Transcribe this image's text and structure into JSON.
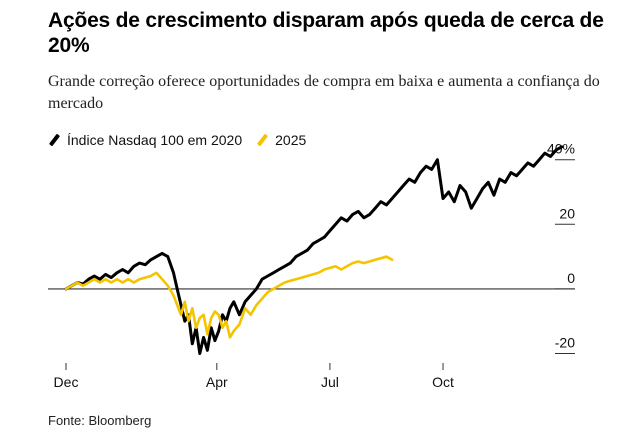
{
  "title": "Ações de crescimento disparam após queda de cerca de 20%",
  "subtitle": "Grande correção oferece oportunidades de compra em baixa e aumenta a confiança do mercado",
  "source": "Fonte: Bloomberg",
  "colors": {
    "series_2020": "#000000",
    "series_2025": "#F5C400",
    "zero_line": "#333333"
  },
  "chart_data": {
    "type": "line",
    "xlim": [
      0,
      13.5
    ],
    "ylim": [
      -22,
      43
    ],
    "x_ticks": [
      {
        "label": "Dec",
        "x": 0
      },
      {
        "label": "Apr",
        "x": 4
      },
      {
        "label": "Jul",
        "x": 7
      },
      {
        "label": "Oct",
        "x": 10
      }
    ],
    "y_ticks": [
      {
        "label": "40%",
        "value": 40
      },
      {
        "label": "20",
        "value": 20
      },
      {
        "label": "0",
        "value": 0
      },
      {
        "label": "-20",
        "value": -20
      }
    ],
    "legend": {
      "position": "top-left"
    },
    "grid": false,
    "series": [
      {
        "name": "Índice Nasdaq 100 em 2020",
        "color": "#000000",
        "x": [
          0,
          0.15,
          0.3,
          0.45,
          0.6,
          0.75,
          0.9,
          1.05,
          1.2,
          1.35,
          1.5,
          1.65,
          1.8,
          1.95,
          2.1,
          2.25,
          2.4,
          2.55,
          2.7,
          2.85,
          2.95,
          3.05,
          3.15,
          3.25,
          3.35,
          3.45,
          3.55,
          3.65,
          3.75,
          3.85,
          3.95,
          4.05,
          4.15,
          4.25,
          4.35,
          4.45,
          4.6,
          4.75,
          4.9,
          5.05,
          5.2,
          5.35,
          5.5,
          5.65,
          5.8,
          5.95,
          6.1,
          6.25,
          6.4,
          6.55,
          6.7,
          6.85,
          7.0,
          7.15,
          7.3,
          7.45,
          7.6,
          7.75,
          7.9,
          8.05,
          8.2,
          8.35,
          8.5,
          8.65,
          8.8,
          8.95,
          9.1,
          9.25,
          9.4,
          9.55,
          9.7,
          9.85,
          10.0,
          10.15,
          10.3,
          10.45,
          10.6,
          10.75,
          10.9,
          11.05,
          11.2,
          11.35,
          11.5,
          11.65,
          11.8,
          11.95,
          12.1,
          12.25,
          12.4,
          12.55,
          12.7,
          12.85,
          13.0,
          13.15
        ],
        "values": [
          0,
          1,
          2,
          1.5,
          3,
          4,
          3,
          4.5,
          3.5,
          5,
          6,
          5,
          7,
          8,
          7.5,
          9,
          10,
          11,
          10,
          5,
          0,
          -5,
          -10,
          -8,
          -17,
          -12,
          -20,
          -15,
          -19,
          -12,
          -16,
          -13,
          -8,
          -10,
          -6,
          -4,
          -8,
          -4,
          -2,
          0,
          3,
          4,
          5,
          6,
          7,
          8,
          10,
          11,
          12,
          14,
          15,
          16,
          18,
          20,
          22,
          21,
          23,
          24,
          22,
          23,
          25,
          27,
          26,
          28,
          30,
          32,
          34,
          33,
          36,
          38,
          37,
          40,
          28,
          30,
          27,
          32,
          30,
          25,
          28,
          31,
          33,
          29,
          34,
          33,
          36,
          35,
          37,
          39,
          38,
          40,
          42,
          41,
          43,
          44
        ]
      },
      {
        "name": "2025",
        "color": "#F5C400",
        "x": [
          0,
          0.15,
          0.3,
          0.45,
          0.6,
          0.75,
          0.9,
          1.05,
          1.2,
          1.35,
          1.5,
          1.65,
          1.8,
          1.95,
          2.1,
          2.25,
          2.4,
          2.55,
          2.7,
          2.85,
          2.95,
          3.05,
          3.15,
          3.25,
          3.35,
          3.45,
          3.55,
          3.65,
          3.75,
          3.85,
          3.95,
          4.05,
          4.15,
          4.25,
          4.35,
          4.45,
          4.6,
          4.75,
          4.9,
          5.05,
          5.2,
          5.35,
          5.5,
          5.65,
          5.8,
          5.95,
          6.1,
          6.25,
          6.4,
          6.55,
          6.7,
          6.85,
          7.0,
          7.15,
          7.3,
          7.45,
          7.6,
          7.75,
          7.9,
          8.05,
          8.2,
          8.35,
          8.5,
          8.65
        ],
        "values": [
          0,
          1,
          2,
          1,
          2,
          3,
          2,
          3,
          2,
          3,
          2,
          3,
          2,
          3,
          3.5,
          4,
          5,
          3,
          1,
          -2,
          -5,
          -8,
          -4,
          -10,
          -6,
          -12,
          -9,
          -8,
          -14,
          -9,
          -7,
          -8,
          -12,
          -10,
          -15,
          -13,
          -11,
          -6,
          -8,
          -5,
          -3,
          -1,
          0,
          1,
          2,
          2.5,
          3,
          3.5,
          4,
          4.5,
          5,
          6,
          6.5,
          7,
          6,
          7,
          8,
          8.5,
          8,
          8.5,
          9,
          9.5,
          10,
          9
        ]
      }
    ]
  }
}
